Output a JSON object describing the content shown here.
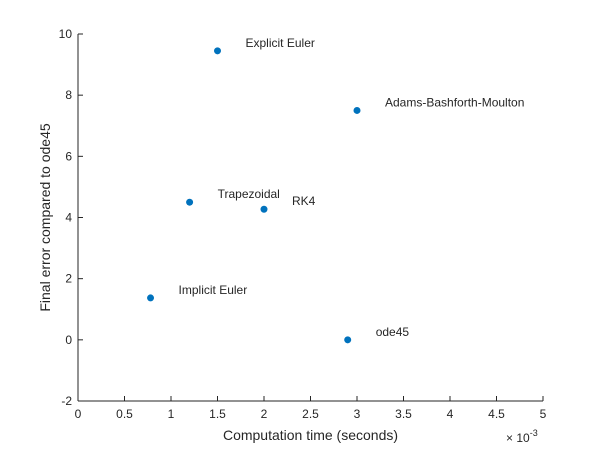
{
  "chart_data": {
    "type": "scatter",
    "xlabel": "Computation time (seconds)",
    "ylabel": "Final error compared to ode45",
    "x_exponent_base": "× 10",
    "x_exponent_power": "-3",
    "xlim": [
      0,
      5
    ],
    "ylim": [
      -2,
      10
    ],
    "x_ticks": [
      "0",
      "0.5",
      "1",
      "1.5",
      "2",
      "2.5",
      "3",
      "3.5",
      "4",
      "4.5",
      "5"
    ],
    "y_ticks": [
      "-2",
      "0",
      "2",
      "4",
      "6",
      "8",
      "10"
    ],
    "grid": false,
    "marker_color": "#0072BD",
    "points": [
      {
        "label": "Explicit Euler",
        "x": 1.5,
        "y": 9.45
      },
      {
        "label": "Adams-Bashforth-Moulton",
        "x": 3.0,
        "y": 7.5
      },
      {
        "label": "Trapezoidal",
        "x": 1.2,
        "y": 4.5
      },
      {
        "label": "RK4",
        "x": 2.0,
        "y": 4.27
      },
      {
        "label": "Implicit Euler",
        "x": 0.78,
        "y": 1.37
      },
      {
        "label": "ode45",
        "x": 2.9,
        "y": 0.0
      }
    ]
  }
}
